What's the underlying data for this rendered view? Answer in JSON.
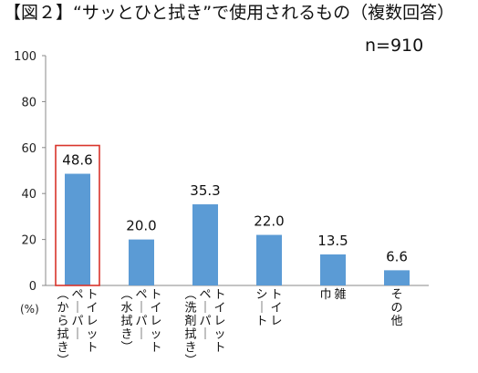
{
  "title": "【図２】“サッとひと拭き”で使用されるもの（複数回答）",
  "sample_size": "n=910",
  "chart_data": {
    "type": "bar",
    "title": "【図２】“サッとひと拭き”で使用されるもの（複数回答）",
    "ylabel": "(%)",
    "ylim": [
      0,
      100
    ],
    "yticks": [
      0,
      20,
      40,
      60,
      80,
      100
    ],
    "grid": false,
    "categories": [
      [
        "トイレット",
        "ペーパー",
        "（から拭き）"
      ],
      [
        "トイレット",
        "ペーパー",
        "（水拭き）"
      ],
      [
        "トイレット",
        "ペーパー",
        "（洗剤拭き）"
      ],
      [
        "トイレ",
        "シート"
      ],
      [
        "雑",
        "巾"
      ],
      [
        "その他"
      ]
    ],
    "values": [
      48.6,
      20.0,
      35.3,
      22.0,
      13.5,
      6.6
    ],
    "value_labels": [
      "48.6",
      "20.0",
      "35.3",
      "22.0",
      "13.5",
      "6.6"
    ],
    "highlighted_index": 0,
    "bar_color": "#5b9bd5",
    "highlight_color": "#d9342b"
  }
}
